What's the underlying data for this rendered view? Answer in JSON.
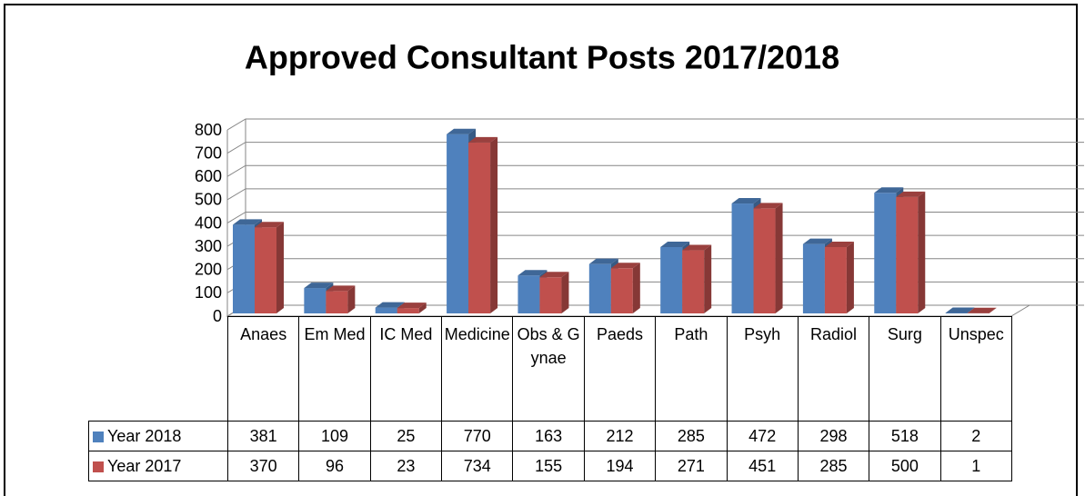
{
  "chart_data": {
    "type": "bar3d",
    "title": "Approved Consultant Posts 2017/2018",
    "categories": [
      "Anaes",
      "Em Med",
      "IC Med",
      "Medicine",
      "Obs & Gynae",
      "Paeds",
      "Path",
      "Psyh",
      "Radiol",
      "Surg",
      "Unspec"
    ],
    "series": [
      {
        "name": "Year 2018",
        "color": "#4f81bd",
        "values": [
          381,
          109,
          25,
          770,
          163,
          212,
          285,
          472,
          298,
          518,
          2
        ]
      },
      {
        "name": "Year 2017",
        "color": "#c0504d",
        "values": [
          370,
          96,
          23,
          734,
          155,
          194,
          271,
          451,
          285,
          500,
          1
        ]
      }
    ],
    "ylim": [
      0,
      800
    ],
    "yticks": [
      0,
      100,
      200,
      300,
      400,
      500,
      600,
      700,
      800
    ],
    "grid": true,
    "data_table": true
  }
}
